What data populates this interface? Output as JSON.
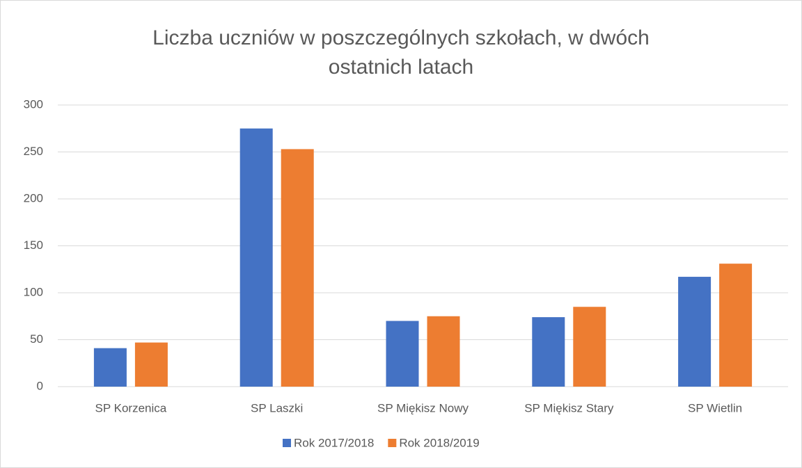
{
  "chart_data": {
    "type": "bar",
    "title": "Liczba uczniów w poszczególnych szkołach, w dwóch ostatnich latach",
    "categories": [
      "SP Korzenica",
      "SP Laszki",
      "SP Miękisz Nowy",
      "SP Miękisz Stary",
      "SP Wietlin"
    ],
    "series": [
      {
        "name": "Rok 2017/2018",
        "color": "#4472c4",
        "values": [
          41,
          275,
          70,
          74,
          117
        ]
      },
      {
        "name": "Rok 2018/2019",
        "color": "#ed7d31",
        "values": [
          47,
          253,
          75,
          85,
          131
        ]
      }
    ],
    "ylim": [
      0,
      300
    ],
    "yticks": [
      0,
      50,
      100,
      150,
      200,
      250,
      300
    ],
    "grid": true,
    "legend": "bottom"
  }
}
